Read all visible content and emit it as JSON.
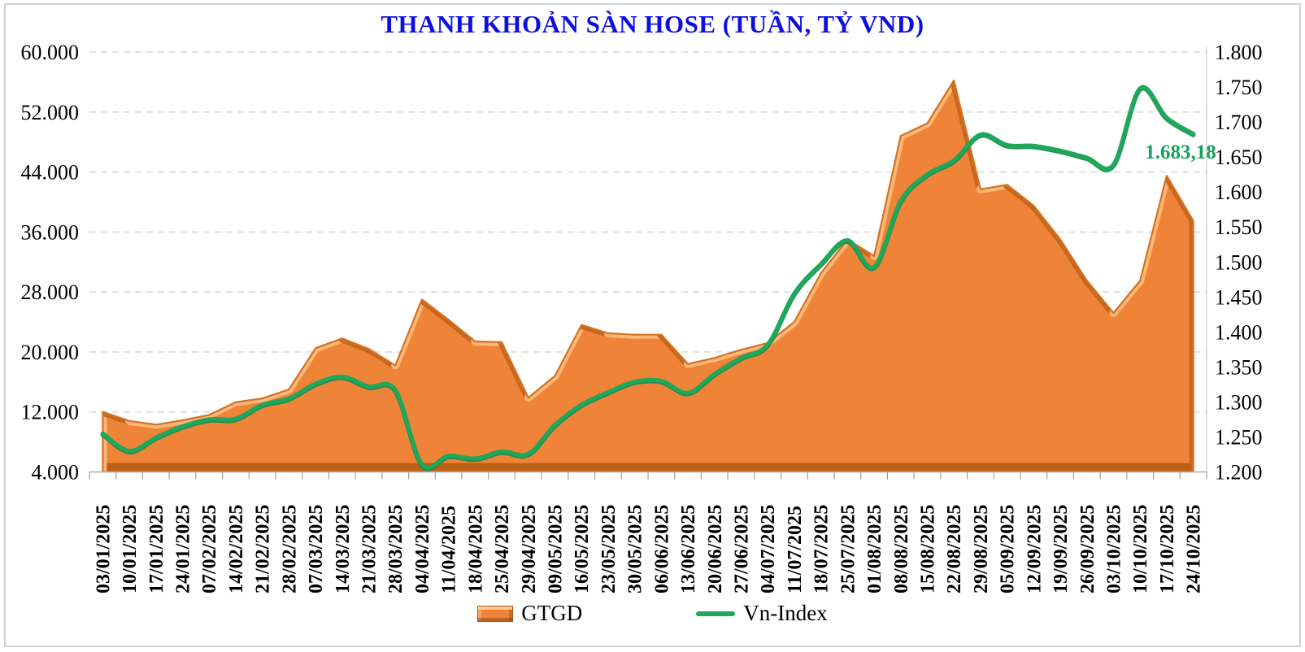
{
  "title": "THANH KHOẢN SÀN HOSE (TUẦN, TỶ VND)",
  "annotation": {
    "label": "1.683,18"
  },
  "legend": {
    "gtgd_label": "GTGD",
    "vnindex_label": "Vn-Index"
  },
  "colors": {
    "title": "#0e0ee0",
    "area_fill": "#EF8438",
    "area_highlight": "#F9BA7C",
    "area_shadow": "#C2671F",
    "area_edge": "#D8701F",
    "area_bottom": "#BC6016",
    "line": "#1FA75C",
    "line_under": "#128A4A",
    "annotation_green": "#17A257",
    "gridline": "#D9D9D9",
    "axis_line": "#ADADAD",
    "tick": "#9C9C9C",
    "axis_text": "#000000",
    "frame": "#CDD2D6"
  },
  "chart_data": {
    "type": "combo",
    "title": "THANH KHOẢN SÀN HOSE (TUẦN, TỶ VND)",
    "grid": "horizontal-dashed",
    "legend_position": "bottom",
    "categories": [
      "03/01/2025",
      "10/01/2025",
      "17/01/2025",
      "24/01/2025",
      "07/02/2025",
      "14/02/2025",
      "21/02/2025",
      "28/02/2025",
      "07/03/2025",
      "14/03/2025",
      "21/03/2025",
      "28/03/2025",
      "04/04/2025",
      "11/04/2025",
      "18/04/2025",
      "25/04/2025",
      "29/04/2025",
      "09/05/2025",
      "16/05/2025",
      "23/05/2025",
      "30/05/2025",
      "06/06/2025",
      "13/06/2025",
      "20/06/2025",
      "27/06/2025",
      "04/07/2025",
      "11/07/2025",
      "18/07/2025",
      "25/07/2025",
      "01/08/2025",
      "08/08/2025",
      "15/08/2025",
      "22/08/2025",
      "29/08/2025",
      "05/09/2025",
      "12/09/2025",
      "19/09/2025",
      "26/09/2025",
      "03/10/2025",
      "10/10/2025",
      "17/10/2025",
      "24/10/2025"
    ],
    "series": [
      {
        "name": "GTGD",
        "type": "area",
        "axis": "left",
        "values": [
          12000,
          10800,
          10300,
          10900,
          11600,
          13300,
          13800,
          15000,
          20500,
          21800,
          20400,
          18200,
          27000,
          24300,
          21400,
          21300,
          13900,
          16800,
          23600,
          22500,
          22300,
          22300,
          18400,
          19200,
          20300,
          21200,
          24000,
          30500,
          35000,
          32800,
          48800,
          50500,
          56200,
          41700,
          42300,
          39500,
          35000,
          29500,
          25200,
          29500,
          43500,
          37500
        ]
      },
      {
        "name": "Vn-Index",
        "type": "line",
        "axis": "right",
        "values": [
          1255,
          1230,
          1249,
          1265,
          1275,
          1276,
          1296,
          1305,
          1326,
          1336,
          1322,
          1317,
          1211,
          1223,
          1219,
          1229,
          1226,
          1267,
          1296,
          1314,
          1329,
          1330,
          1313,
          1340,
          1363,
          1382,
          1455,
          1497,
          1531,
          1493,
          1587,
          1625,
          1645,
          1682,
          1667,
          1666,
          1659,
          1649,
          1639,
          1748,
          1706,
          1683.18
        ]
      }
    ],
    "left_axis": {
      "min": 4000,
      "max": 60000,
      "step": 8000,
      "tick_labels": [
        "60.000",
        "52.000",
        "44.000",
        "36.000",
        "28.000",
        "20.000",
        "12.000",
        "4.000"
      ]
    },
    "right_axis": {
      "min": 1200,
      "max": 1800,
      "step": 50,
      "tick_labels": [
        "1.800",
        "1.750",
        "1.700",
        "1.650",
        "1.600",
        "1.550",
        "1.500",
        "1.450",
        "1.400",
        "1.350",
        "1.300",
        "1.250",
        "1.200"
      ]
    },
    "last_point_label": "1.683,18"
  }
}
